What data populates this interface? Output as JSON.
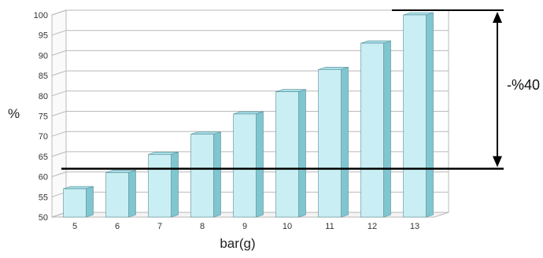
{
  "chart_data": {
    "type": "bar",
    "categories": [
      "5",
      "6",
      "7",
      "8",
      "9",
      "10",
      "11",
      "12",
      "13"
    ],
    "values": [
      57,
      61,
      65.5,
      70.5,
      75.5,
      81,
      86.5,
      93,
      100
    ],
    "ylim": [
      50,
      100
    ],
    "yticks": [
      "50",
      "55",
      "60",
      "65",
      "70",
      "75",
      "80",
      "85",
      "90",
      "95",
      "100"
    ],
    "xlabel": "bar(g)",
    "ylabel": "%",
    "grid": true,
    "annotation": {
      "label": "-%40",
      "from_value": 61,
      "to_value": 100
    },
    "colors": {
      "bar_front": "#c9eef3",
      "bar_side": "#7fc6d0",
      "bar_top": "#a5dde5",
      "bar_edge": "#5a8e97",
      "grid": "#b9b9b9",
      "annotation": "#000000"
    }
  }
}
